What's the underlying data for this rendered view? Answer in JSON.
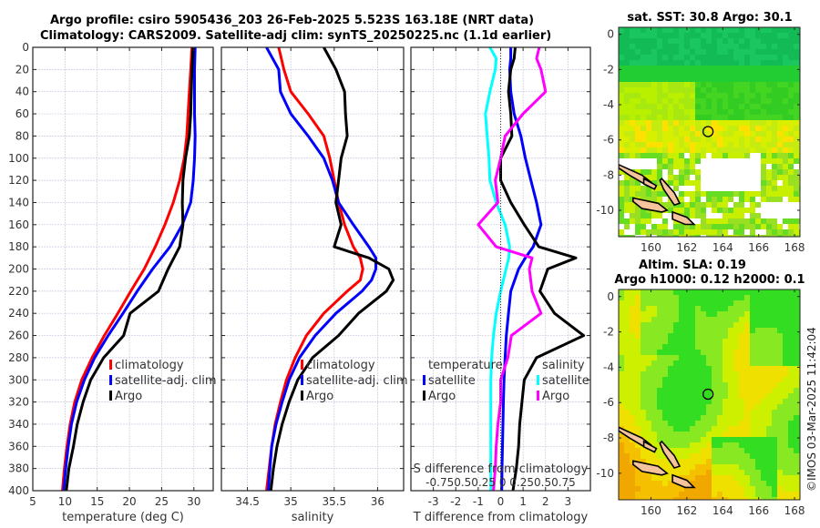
{
  "header": {
    "line1": "Argo profile: csiro 5905436_203 26-Feb-2025 5.523S 163.18E (NRT data)",
    "line2": "Climatology: CARS2009. Satellite-adj clim: synTS_20250225.nc (1.1d earlier)"
  },
  "colors": {
    "climatology": "#ff0000",
    "satellite": "#0000ff",
    "argo": "#000000",
    "s_satellite": "#00ffff",
    "s_argo": "#ff00ff"
  },
  "chart_data": [
    {
      "type": "line",
      "name": "temperature-profile",
      "xlabel": "temperature (deg C)",
      "ylabel": "",
      "xlim": [
        5,
        33
      ],
      "ylim": [
        400,
        0
      ],
      "xticks": [
        5,
        10,
        15,
        20,
        25,
        30
      ],
      "yticks": [
        0,
        20,
        40,
        60,
        80,
        100,
        120,
        140,
        160,
        180,
        200,
        220,
        240,
        260,
        280,
        300,
        320,
        340,
        360,
        380,
        400
      ],
      "grid": true,
      "legend": {
        "position": "right-middle",
        "entries": [
          "climatology",
          "satellite-adj. clim",
          "Argo"
        ]
      },
      "depth": [
        0,
        20,
        40,
        60,
        80,
        100,
        120,
        140,
        160,
        180,
        200,
        220,
        240,
        260,
        280,
        300,
        320,
        340,
        360,
        380,
        400
      ],
      "series": [
        {
          "name": "climatology",
          "color_key": "climatology",
          "values": [
            29.7,
            29.5,
            29.3,
            29.1,
            28.9,
            28.5,
            27.8,
            26.8,
            25.5,
            24.0,
            22.3,
            20.2,
            18.2,
            16.1,
            14.2,
            12.6,
            11.5,
            10.8,
            10.3,
            9.9,
            9.6
          ]
        },
        {
          "name": "satellite-adj. clim",
          "color_key": "satellite",
          "values": [
            30.2,
            30.1,
            30.1,
            30.1,
            30.2,
            30.1,
            29.9,
            29.5,
            28.2,
            26.3,
            23.6,
            21.2,
            19.0,
            16.7,
            14.6,
            13.0,
            11.8,
            11.0,
            10.5,
            10.1,
            9.8
          ]
        },
        {
          "name": "Argo",
          "color_key": "argo",
          "values": [
            29.9,
            29.7,
            29.6,
            29.5,
            29.3,
            28.7,
            28.3,
            28.2,
            28.3,
            27.8,
            26.0,
            24.5,
            20.1,
            19.1,
            16.0,
            14.0,
            12.8,
            11.9,
            11.3,
            10.6,
            10.2
          ]
        }
      ]
    },
    {
      "type": "line",
      "name": "salinity-profile",
      "xlabel": "salinity",
      "xlim": [
        34.2,
        36.3
      ],
      "ylim": [
        400,
        0
      ],
      "xticks": [
        34.5,
        35,
        35.5,
        36
      ],
      "grid": true,
      "legend": {
        "position": "center-left",
        "entries": [
          "climatology",
          "satellite-adj. clim",
          "Argo"
        ]
      },
      "depth": [
        0,
        20,
        40,
        60,
        80,
        100,
        120,
        140,
        160,
        180,
        190,
        200,
        210,
        220,
        240,
        260,
        280,
        300,
        320,
        340,
        360,
        380,
        400
      ],
      "series": [
        {
          "name": "climatology",
          "color_key": "climatology",
          "values": [
            34.86,
            34.92,
            35.0,
            35.2,
            35.38,
            35.45,
            35.5,
            35.55,
            35.62,
            35.72,
            35.8,
            35.83,
            35.8,
            35.65,
            35.38,
            35.18,
            35.05,
            34.95,
            34.88,
            34.82,
            34.78,
            34.75,
            34.72
          ]
        },
        {
          "name": "satellite-adj. clim",
          "color_key": "satellite",
          "values": [
            34.72,
            34.86,
            34.88,
            35.0,
            35.2,
            35.38,
            35.48,
            35.55,
            35.72,
            35.9,
            35.98,
            35.98,
            35.93,
            35.82,
            35.52,
            35.28,
            35.1,
            34.98,
            34.9,
            34.83,
            34.78,
            34.76,
            34.74
          ]
        },
        {
          "name": "Argo",
          "color_key": "argo",
          "values": [
            35.38,
            35.52,
            35.62,
            35.63,
            35.65,
            35.58,
            35.55,
            35.52,
            35.58,
            35.5,
            35.9,
            36.13,
            36.18,
            36.1,
            35.78,
            35.55,
            35.25,
            35.08,
            34.98,
            34.9,
            34.84,
            34.8,
            34.77
          ]
        }
      ]
    },
    {
      "type": "line",
      "name": "difference-profile",
      "xlabel": "T difference from climatology",
      "top_axis_label": "S difference from climatology",
      "xlim": [
        -4,
        4
      ],
      "s_xlim": [
        -1,
        1
      ],
      "ylim": [
        400,
        0
      ],
      "xticks": [
        -3,
        -2,
        -1,
        0,
        1,
        2,
        3
      ],
      "s_xticks_labels": [
        "-0.75",
        "0.5",
        "0.25",
        "0",
        "0.25",
        "0.5",
        "0.75"
      ],
      "s_ticks_text": "-0.750.50.25 0 0.250.50.75",
      "grid": true,
      "legend_temperature": {
        "title": "temperature",
        "entries": [
          "satellite",
          "Argo"
        ]
      },
      "legend_salinity": {
        "title": "salinity",
        "entries": [
          "satellite",
          "Argo"
        ]
      },
      "depth": [
        0,
        10,
        20,
        40,
        60,
        80,
        100,
        120,
        140,
        160,
        180,
        190,
        200,
        220,
        240,
        260,
        280,
        300,
        320,
        340,
        360,
        380,
        400
      ],
      "series": [
        {
          "name": "temperature satellite",
          "color_key": "satellite",
          "axis": "T",
          "values": [
            0.45,
            0.45,
            0.4,
            0.45,
            0.6,
            0.9,
            1.1,
            1.35,
            1.6,
            1.8,
            1.45,
            1.1,
            0.8,
            0.45,
            0.35,
            0.25,
            0.2,
            0.15,
            0.12,
            0.1,
            0.08,
            0.06,
            0.05
          ]
        },
        {
          "name": "temperature Argo",
          "color_key": "argo",
          "axis": "T",
          "values": [
            0.65,
            0.6,
            0.45,
            0.35,
            0.45,
            0.5,
            0.0,
            0.0,
            0.45,
            1.05,
            1.7,
            3.35,
            2.1,
            1.75,
            2.4,
            3.7,
            1.6,
            1.05,
            0.95,
            0.85,
            0.8,
            0.7,
            0.55
          ]
        },
        {
          "name": "salinity satellite",
          "color_key": "s_satellite",
          "axis": "S",
          "values": [
            -0.12,
            -0.05,
            -0.06,
            -0.12,
            -0.17,
            -0.15,
            -0.13,
            -0.12,
            -0.05,
            0.05,
            0.1,
            0.09,
            0.06,
            0.0,
            -0.05,
            -0.08,
            -0.1,
            -0.11,
            -0.11,
            -0.11,
            -0.11,
            -0.11,
            -0.11
          ]
        },
        {
          "name": "salinity Argo",
          "color_key": "s_argo",
          "axis": "S",
          "values": [
            0.43,
            0.4,
            0.45,
            0.5,
            0.25,
            0.05,
            0.0,
            -0.06,
            -0.03,
            -0.25,
            -0.05,
            0.35,
            0.32,
            0.35,
            0.45,
            0.12,
            0.08,
            0.0,
            0.0,
            -0.03,
            -0.05,
            -0.06,
            -0.08
          ]
        }
      ]
    },
    {
      "type": "heatmap",
      "name": "sst-map",
      "title": "sat. SST: 30.8 Argo: 30.1",
      "xlim": [
        158.2,
        168.3
      ],
      "ylim": [
        -11.5,
        0.4
      ],
      "xticks": [
        160,
        162,
        164,
        166,
        168
      ],
      "yticks": [
        0,
        -2,
        -4,
        -6,
        -8,
        -10
      ],
      "marker": {
        "lon": 163.18,
        "lat": -5.523
      }
    },
    {
      "type": "heatmap",
      "name": "sla-map",
      "title_line1": "Altim. SLA: 0.19",
      "title_line2": "Argo h1000: 0.12 h2000: 0.1",
      "xlim": [
        158.2,
        168.3
      ],
      "ylim": [
        -11.5,
        0.4
      ],
      "xticks": [
        160,
        162,
        164,
        166,
        168
      ],
      "yticks": [
        0,
        -2,
        -4,
        -6,
        -8,
        -10
      ],
      "marker": {
        "lon": 163.18,
        "lat": -5.523
      }
    }
  ],
  "footer": {
    "stamp": "©IMOS 03-Mar-2025 11:42:04"
  }
}
